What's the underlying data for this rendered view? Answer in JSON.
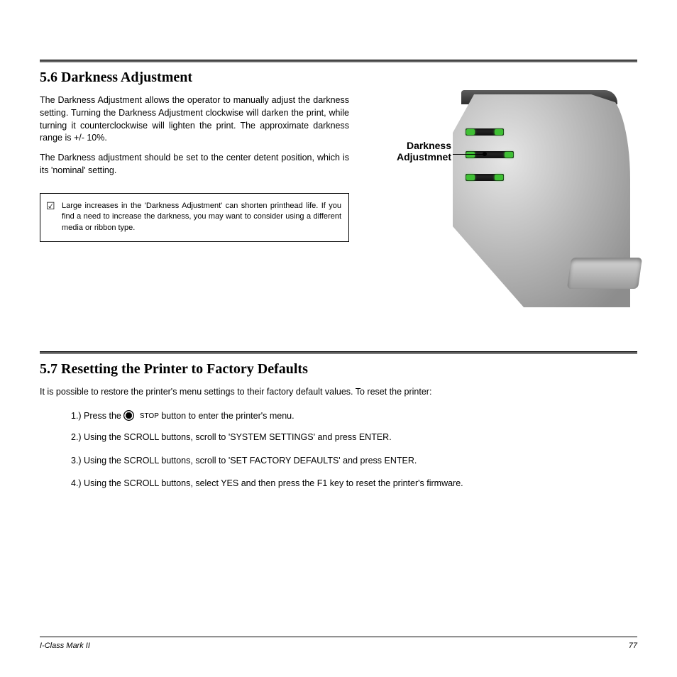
{
  "bar_color": "#5d5d5d",
  "section1": {
    "heading": "5.6 Darkness Adjustment",
    "para1": "The Darkness Adjustment allows the operator to manually adjust the darkness setting. Turning the Darkness Adjustment clockwise will darken the print, while turning it counterclockwise will lighten the print. The approximate darkness range is +/- 10%.",
    "para2": "The Darkness adjustment should be set to the center detent position, which is its 'nominal' setting.",
    "note": "Large increases in the 'Darkness Adjustment' can shorten printhead life. If you find a need to increase the darkness, you may want to consider using a different media or ribbon type.",
    "img": {
      "label": "Darkness\nAdjustmnet",
      "led_color": "#3fbf34",
      "body_color": "#b4b4b4"
    }
  },
  "section2": {
    "heading": "5.7 Resetting the Printer to Factory Defaults",
    "intro": "It is possible to restore the printer's menu settings to their factory default values. To reset the printer:",
    "stop_label": "STOP",
    "step1_prefix": "1.) Press the ",
    "step1_suffix": " button to enter the printer's menu.",
    "step2": "2.) Using the SCROLL buttons, scroll to 'SYSTEM SETTINGS' and press ENTER.",
    "step3": "3.) Using the SCROLL buttons, scroll to 'SET FACTORY DEFAULTS' and press ENTER.",
    "step4": "4.) Using the SCROLL buttons, select YES and then press the F1 key to reset the printer's firmware."
  },
  "footer": {
    "left": "I-Class Mark II",
    "page": "77"
  }
}
